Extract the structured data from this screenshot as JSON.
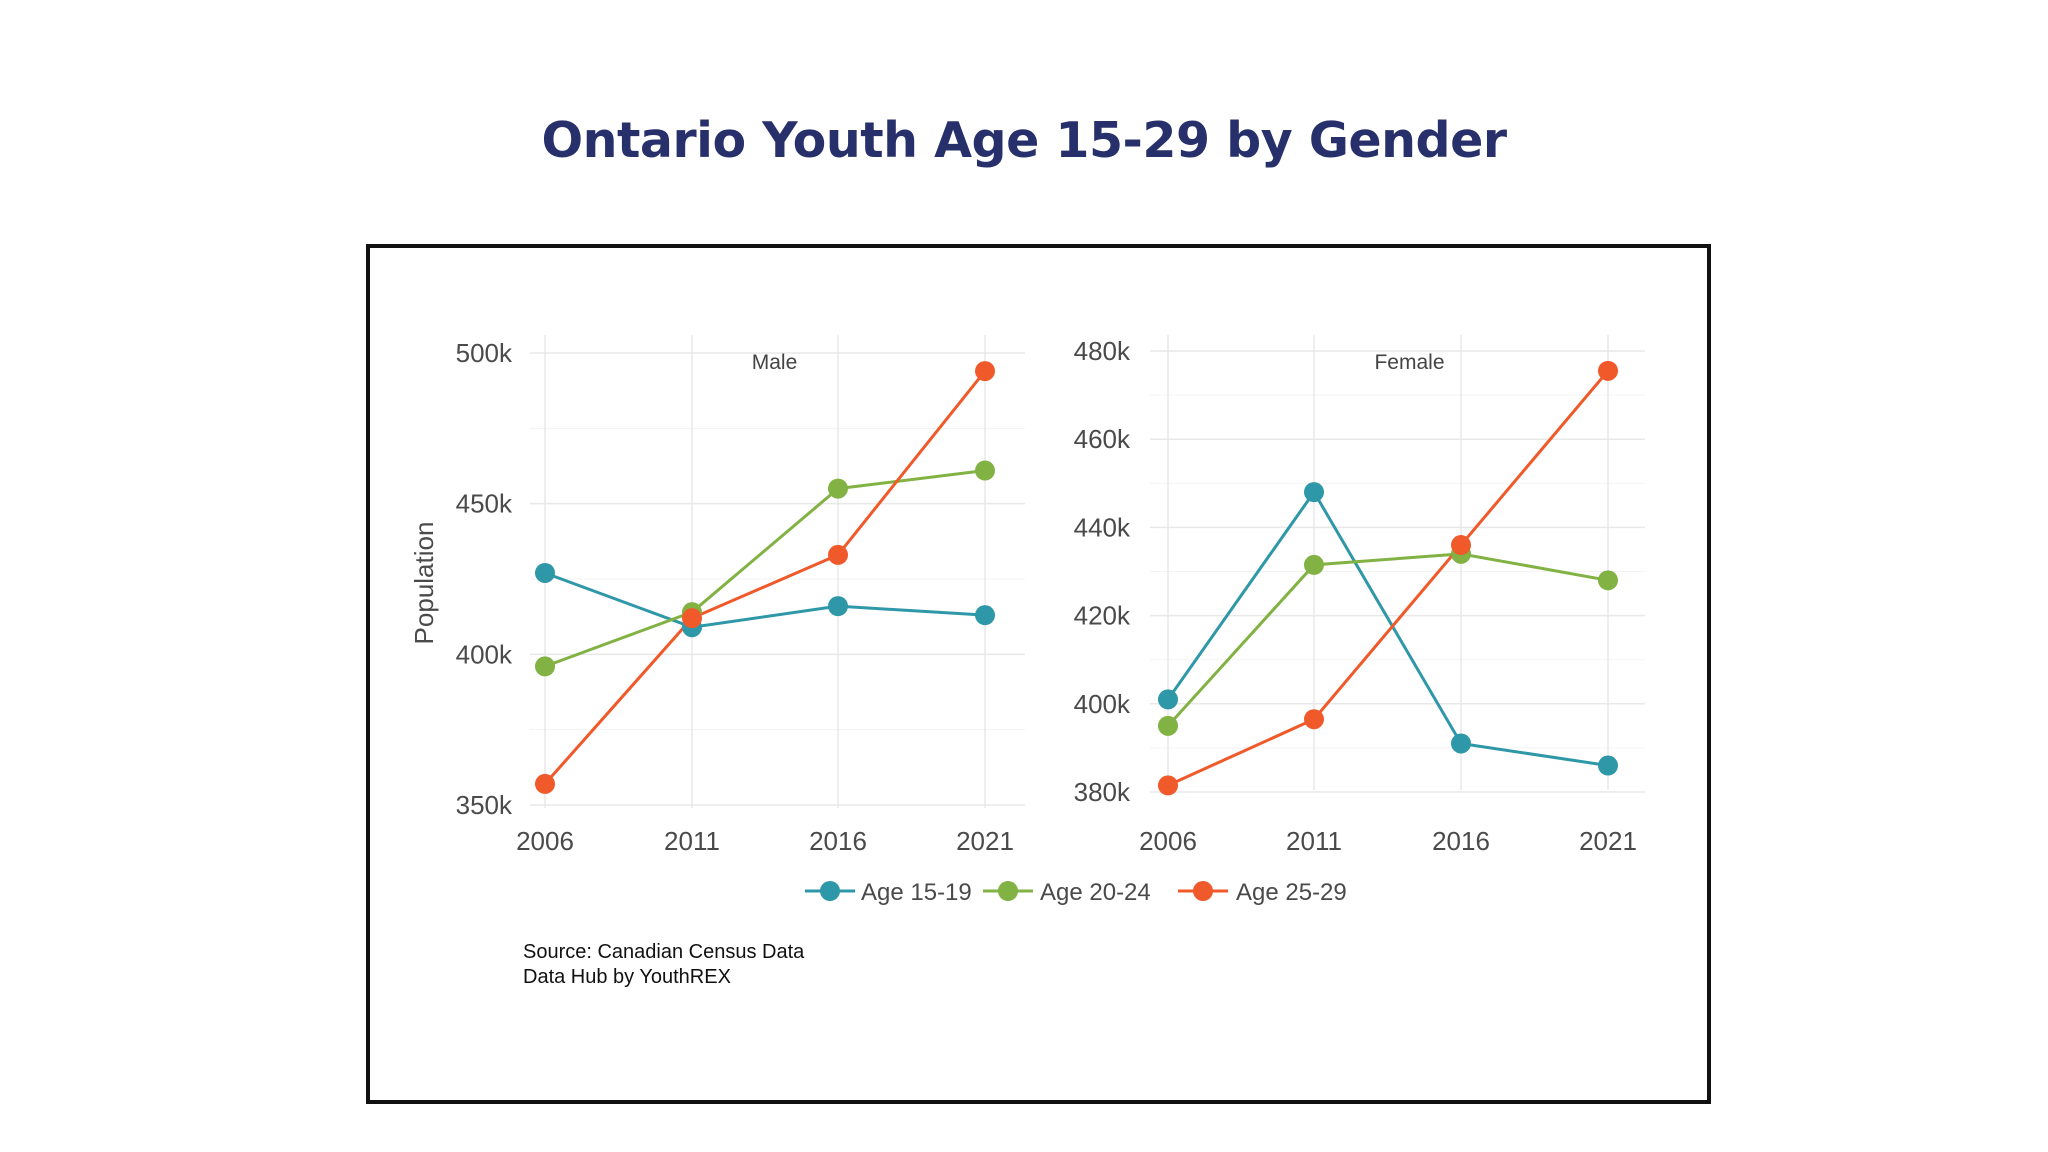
{
  "title": "Ontario Youth Age 15-29 by Gender",
  "source": {
    "line1": "Source: Canadian Census Data",
    "line2": "Data Hub by YouthREX"
  },
  "colors": {
    "age_15_19": "#2e97a8",
    "age_20_24": "#82b243",
    "age_25_29": "#f0592a",
    "title": "#27306b"
  },
  "chart_data": [
    {
      "type": "line",
      "facet": "Male",
      "x": [
        2006,
        2011,
        2016,
        2021
      ],
      "ylabel": "Population",
      "ylim": [
        350000,
        500000
      ],
      "yticks": [
        350000,
        400000,
        450000,
        500000
      ],
      "ytick_labels": [
        "350k",
        "400k",
        "450k",
        "500k"
      ],
      "series": [
        {
          "name": "Age 15-19",
          "values": [
            427000,
            409000,
            416000,
            413000
          ]
        },
        {
          "name": "Age 20-24",
          "values": [
            396000,
            414000,
            455000,
            461000
          ]
        },
        {
          "name": "Age 25-29",
          "values": [
            357000,
            412000,
            433000,
            494000
          ]
        }
      ],
      "grid": true
    },
    {
      "type": "line",
      "facet": "Female",
      "x": [
        2006,
        2011,
        2016,
        2021
      ],
      "ylabel": "",
      "ylim": [
        380000,
        480000
      ],
      "yticks": [
        380000,
        400000,
        420000,
        440000,
        460000,
        480000
      ],
      "ytick_labels": [
        "380k",
        "400k",
        "420k",
        "440k",
        "460k",
        "480k"
      ],
      "series": [
        {
          "name": "Age 15-19",
          "values": [
            401000,
            448000,
            391000,
            386000
          ]
        },
        {
          "name": "Age 20-24",
          "values": [
            395000,
            431500,
            434000,
            428000
          ]
        },
        {
          "name": "Age 25-29",
          "values": [
            381500,
            396500,
            436000,
            475500
          ]
        }
      ],
      "grid": true
    }
  ],
  "legend": {
    "placement": "bottom",
    "items": [
      "Age 15-19",
      "Age 20-24",
      "Age 25-29"
    ]
  }
}
